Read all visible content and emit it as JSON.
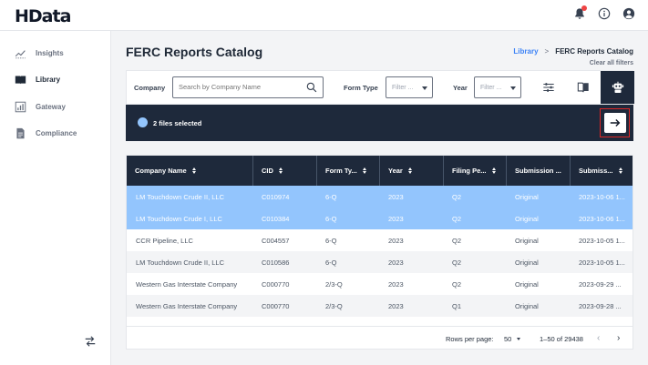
{
  "app": {
    "logo": "HData"
  },
  "header": {
    "icons": [
      "bell-icon",
      "info-icon",
      "user-icon"
    ]
  },
  "sidebar": {
    "items": [
      {
        "label": "Insights",
        "icon": "insights-icon",
        "active": false
      },
      {
        "label": "Library",
        "icon": "library-icon",
        "active": true
      },
      {
        "label": "Gateway",
        "icon": "gateway-icon",
        "active": false
      },
      {
        "label": "Compliance",
        "icon": "compliance-icon",
        "active": false
      }
    ],
    "collapse_icon": "swap-arrows-icon"
  },
  "page": {
    "title": "FERC Reports Catalog",
    "breadcrumb": {
      "link": "Library",
      "separator": ">",
      "current": "FERC Reports Catalog"
    },
    "clear_filters": "Clear all filters"
  },
  "filters": {
    "company_label": "Company",
    "search_placeholder": "Search by Company Name",
    "form_type_label": "Form Type",
    "form_type_value": "Filter ...",
    "year_label": "Year",
    "year_value": "Filter ...",
    "buttons": [
      "sliders-icon",
      "book-icon",
      "robot-icon"
    ]
  },
  "selection": {
    "text": "2 files selected",
    "action_icon": "arrow-right-icon"
  },
  "table": {
    "columns": [
      "Company Name",
      "CID",
      "Form Ty...",
      "Year",
      "Filing Pe...",
      "Submission ...",
      "Submiss..."
    ],
    "rows": [
      {
        "cells": [
          "LM Touchdown Crude II, LLC",
          "C010974",
          "6-Q",
          "2023",
          "Q2",
          "Original",
          "2023-10-06 1..."
        ],
        "selected": true
      },
      {
        "cells": [
          "LM Touchdown Crude I, LLC",
          "C010384",
          "6-Q",
          "2023",
          "Q2",
          "Original",
          "2023-10-06 1..."
        ],
        "selected": true
      },
      {
        "cells": [
          "CCR Pipeline, LLC",
          "C004557",
          "6-Q",
          "2023",
          "Q2",
          "Original",
          "2023-10-05 1..."
        ],
        "selected": false
      },
      {
        "cells": [
          "LM Touchdown Crude II, LLC",
          "C010586",
          "6-Q",
          "2023",
          "Q2",
          "Original",
          "2023-10-05 1..."
        ],
        "selected": false
      },
      {
        "cells": [
          "Western Gas Interstate Company",
          "C000770",
          "2/3-Q",
          "2023",
          "Q2",
          "Original",
          "2023-09-29 ..."
        ],
        "selected": false
      },
      {
        "cells": [
          "Western Gas Interstate Company",
          "C000770",
          "2/3-Q",
          "2023",
          "Q1",
          "Original",
          "2023-09-28 ..."
        ],
        "selected": false
      }
    ]
  },
  "pagination": {
    "rows_per_page_label": "Rows per page:",
    "rows_per_page": "50",
    "range": "1–50 of 29438",
    "prev": "‹",
    "next": "›"
  },
  "colors": {
    "dark": "#1e293b",
    "selected_row": "#93c5fd",
    "link": "#3b82f6",
    "highlight_border": "#dc2626"
  }
}
